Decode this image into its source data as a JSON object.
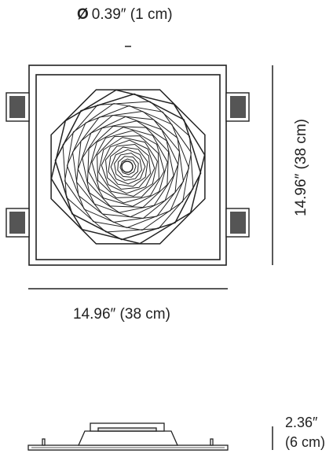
{
  "diameter": {
    "symbol": "Ø",
    "value": "0.39″ (1 cm)"
  },
  "width_dimension": "14.96″ (38 cm)",
  "height_dimension": "14.96″ (38 cm)",
  "depth_dimension": {
    "line1": "2.36″",
    "line2": "(6 cm)"
  }
}
